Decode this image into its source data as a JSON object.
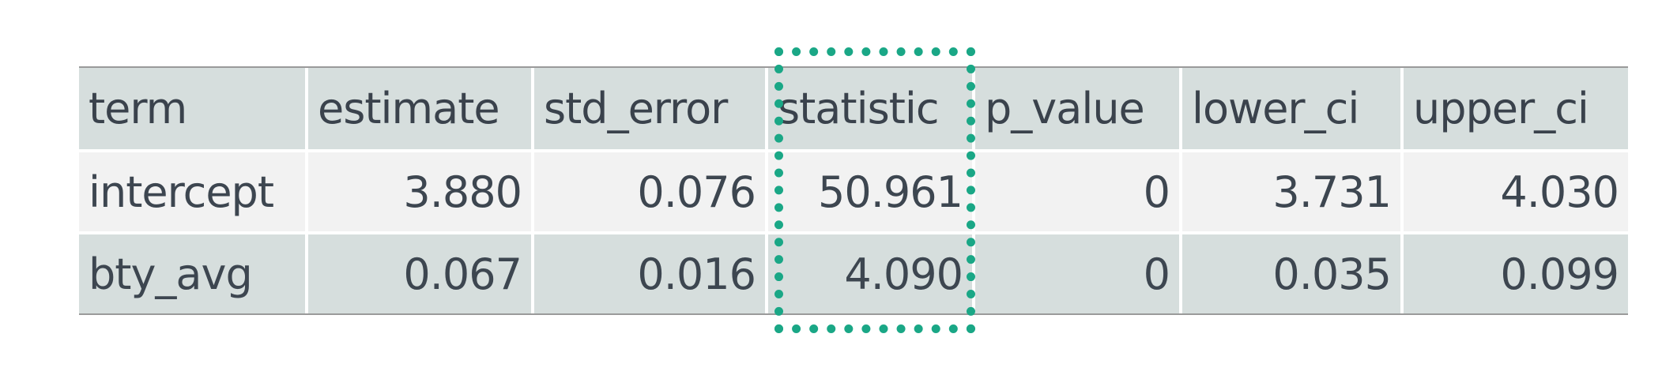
{
  "table": {
    "columns": [
      "term",
      "estimate",
      "std_error",
      "statistic",
      "p_value",
      "lower_ci",
      "upper_ci"
    ],
    "rows": [
      {
        "term": "intercept",
        "estimate": "3.880",
        "std_error": "0.076",
        "statistic": "50.961",
        "p_value": "0",
        "lower_ci": "3.731",
        "upper_ci": "4.030"
      },
      {
        "term": "bty_avg",
        "estimate": "0.067",
        "std_error": "0.016",
        "statistic": "4.090",
        "p_value": "0",
        "lower_ci": "0.035",
        "upper_ci": "0.099"
      }
    ]
  },
  "highlight": {
    "column": "statistic",
    "color": "#1aa786",
    "style": "dotted"
  },
  "colors": {
    "header_bg": "#d6dedd",
    "row_light_bg": "#f2f2f2",
    "row_dark_bg": "#d6dedd",
    "text": "#3d4650"
  }
}
